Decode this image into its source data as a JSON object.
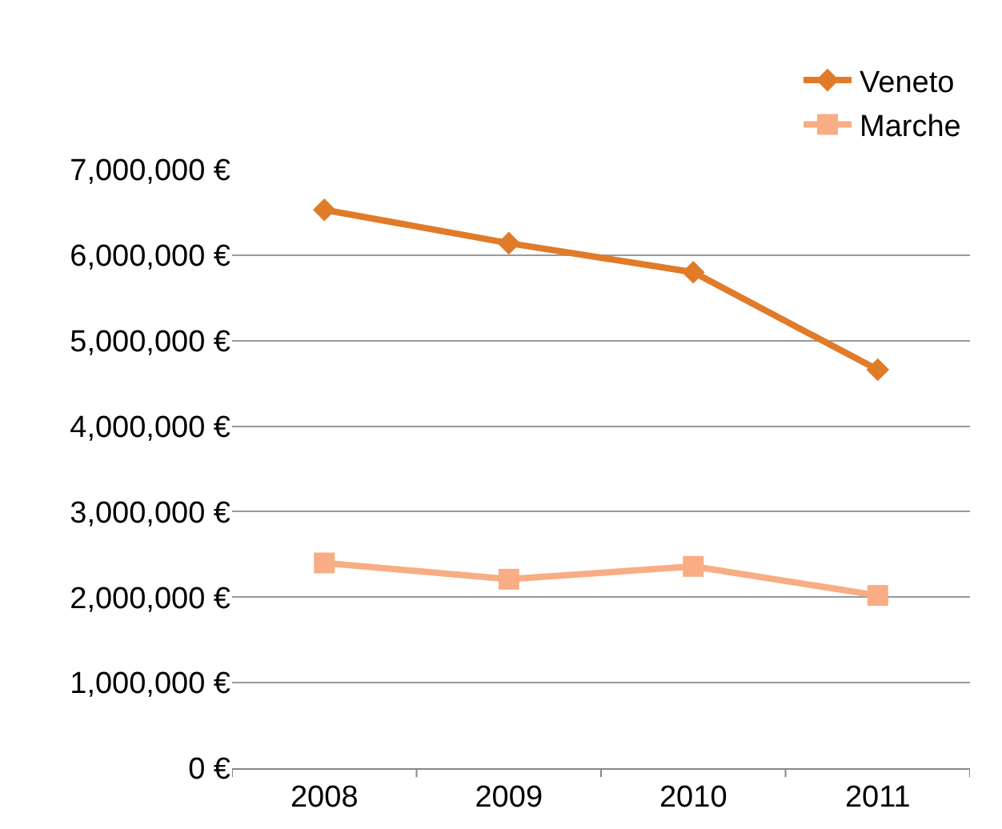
{
  "chart_data": {
    "type": "line",
    "categories": [
      "2008",
      "2009",
      "2010",
      "2011"
    ],
    "series": [
      {
        "name": "Veneto",
        "color": "#e07b2a",
        "marker": "diamond",
        "values": [
          6530000,
          6140000,
          5800000,
          4660000
        ]
      },
      {
        "name": "Marche",
        "color": "#f8ad84",
        "marker": "square",
        "values": [
          2400000,
          2210000,
          2360000,
          2020000
        ]
      }
    ],
    "ylim": [
      0,
      7000000
    ],
    "yticks": [
      {
        "value": 0,
        "label": "0 €"
      },
      {
        "value": 1000000,
        "label": "1,000,000 €"
      },
      {
        "value": 2000000,
        "label": "2,000,000 €"
      },
      {
        "value": 3000000,
        "label": "3,000,000 €"
      },
      {
        "value": 4000000,
        "label": "4,000,000 €"
      },
      {
        "value": 5000000,
        "label": "5,000,000 €"
      },
      {
        "value": 6000000,
        "label": "6,000,000 €"
      },
      {
        "value": 7000000,
        "label": "7,000,000 €"
      }
    ],
    "grid": "y",
    "legend": "top right",
    "line_style": "solid"
  }
}
